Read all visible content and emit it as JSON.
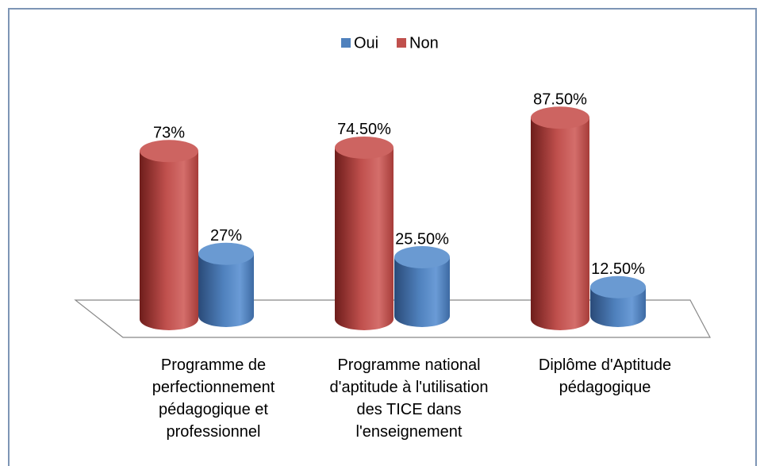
{
  "chart_data": {
    "type": "bar3d",
    "categories": [
      "Programme de perfectionnement pédagogique et professionnel",
      "Programme national d'aptitude à l'utilisation des TICE dans l'enseignement",
      "Diplôme d'Aptitude pédagogique"
    ],
    "series": [
      {
        "name": "Oui",
        "color": "#4f81bd",
        "values": [
          27,
          25.5,
          12.5
        ],
        "value_labels": [
          "27%",
          "25.50%",
          "12.50%"
        ]
      },
      {
        "name": "Non",
        "color": "#c0504d",
        "values": [
          73,
          74.5,
          87.5
        ],
        "value_labels": [
          "73%",
          "74.50%",
          "87.50%"
        ]
      }
    ],
    "legend": "top"
  }
}
